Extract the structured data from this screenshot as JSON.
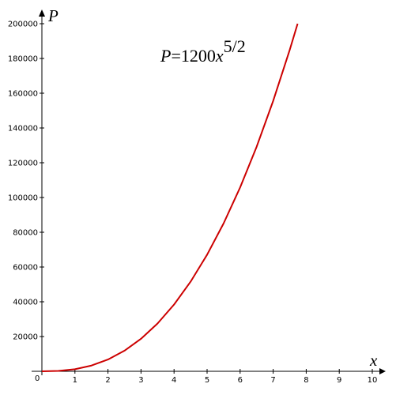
{
  "chart_data": {
    "type": "line",
    "title": "",
    "xlabel": "x",
    "ylabel": "P",
    "xlim": [
      0,
      10
    ],
    "ylim": [
      0,
      200000
    ],
    "x_ticks": [
      1,
      2,
      3,
      4,
      5,
      6,
      7,
      8,
      9,
      10
    ],
    "y_ticks": [
      20000,
      40000,
      60000,
      80000,
      100000,
      120000,
      140000,
      160000,
      180000,
      200000
    ],
    "origin_label": "0",
    "grid": false,
    "legend": "none",
    "series": [
      {
        "color": "#cc0000",
        "x": [
          0,
          0.5,
          1,
          1.5,
          2,
          2.5,
          3,
          3.5,
          4,
          4.5,
          5,
          5.5,
          6,
          6.5,
          7,
          7.5,
          7.74
        ],
        "y": [
          0,
          212,
          1200,
          3307,
          6788,
          11859,
          18706,
          27503,
          38400,
          51545,
          67082,
          85115,
          105796,
          129222,
          155571,
          184869,
          200000
        ]
      }
    ],
    "annotation": {
      "prefix": "P",
      "middle": "=1200",
      "var": "x",
      "exponent": "5/2"
    }
  }
}
